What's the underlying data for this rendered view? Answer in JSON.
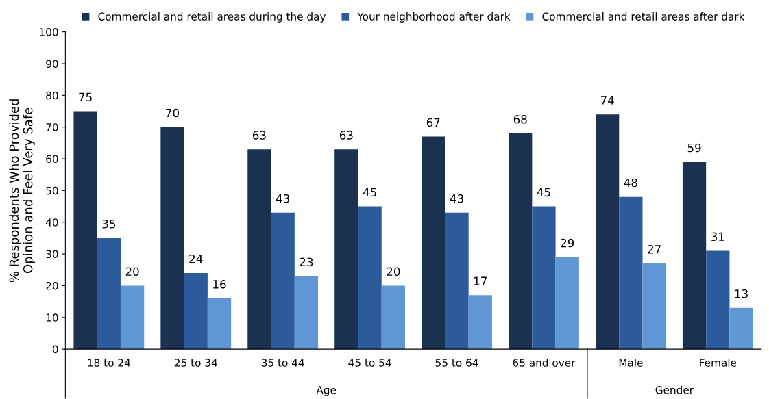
{
  "chart_data": {
    "type": "bar",
    "ylabel": "% Respondents Who Provided\nOpinion and Feel Very Safe",
    "categories": [
      "18 to 24",
      "25 to 34",
      "35 to 44",
      "45 to 54",
      "55 to 64",
      "65 and over",
      "Male",
      "Female"
    ],
    "series": [
      {
        "name": "Commercial and retail areas during the day",
        "color": "#1b3152",
        "values": [
          75,
          70,
          63,
          63,
          67,
          68,
          74,
          59
        ]
      },
      {
        "name": "Your neighborhood after dark",
        "color": "#2c5b9c",
        "values": [
          35,
          24,
          43,
          45,
          43,
          45,
          48,
          31
        ]
      },
      {
        "name": "Commercial and retail areas after dark",
        "color": "#5f97d6",
        "values": [
          20,
          16,
          23,
          20,
          17,
          29,
          27,
          13
        ]
      }
    ],
    "ylim": [
      0,
      100
    ],
    "yticks": [
      0,
      10,
      20,
      30,
      40,
      50,
      60,
      70,
      80,
      90,
      100
    ],
    "data_labels": true,
    "grid": false,
    "legend": "top",
    "annotations": [
      "Age",
      "Gender"
    ]
  }
}
